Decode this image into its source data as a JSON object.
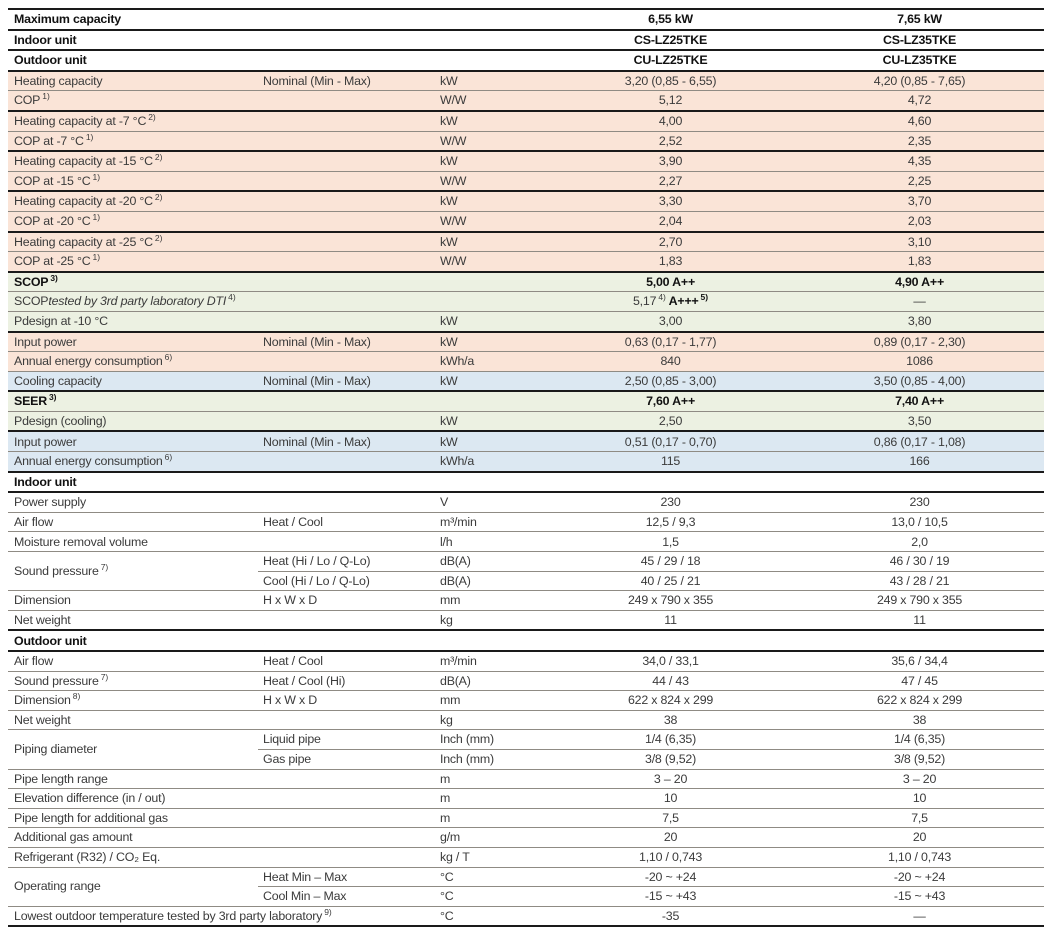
{
  "colors": {
    "salmon": "#fae4d7",
    "green": "#ecf1e2",
    "blue": "#dce8f2",
    "white": "#ffffff",
    "thick_border": "#1a1a1a",
    "thin_border": "#8f8b84"
  },
  "table": {
    "rows": [
      {
        "type": "header",
        "label": "Maximum capacity",
        "top": "tk",
        "values": [
          "6,55 kW",
          "7,65 kW"
        ]
      },
      {
        "type": "header",
        "label": "Indoor unit",
        "top": "tk",
        "values": [
          "CS-LZ25TKE",
          "CS-LZ35TKE"
        ]
      },
      {
        "type": "header",
        "label": "Outdoor unit",
        "top": "tk",
        "values": [
          "CU-LZ25TKE",
          "CU-LZ35TKE"
        ]
      },
      {
        "label": "Heating capacity",
        "sub": "Nominal (Min - Max)",
        "unit": "kW",
        "values": [
          "3,20 (0,85 - 6,55)",
          "4,20 (0,85 - 7,65)"
        ],
        "bg": "salmon",
        "top": "tk"
      },
      {
        "label": "COP",
        "sup": "1)",
        "unit": "W/W",
        "values": [
          "5,12",
          "4,72"
        ],
        "bg": "salmon",
        "top": "tn"
      },
      {
        "label": "Heating capacity at -7 °C",
        "sup": "2)",
        "unit": "kW",
        "values": [
          "4,00",
          "4,60"
        ],
        "bg": "salmon",
        "top": "tk"
      },
      {
        "label": "COP at -7 °C",
        "sup": "1)",
        "unit": "W/W",
        "values": [
          "2,52",
          "2,35"
        ],
        "bg": "salmon",
        "top": "tn"
      },
      {
        "label": "Heating capacity at -15 °C",
        "sup": "2)",
        "unit": "kW",
        "values": [
          "3,90",
          "4,35"
        ],
        "bg": "salmon",
        "top": "tk"
      },
      {
        "label": "COP at -15 °C",
        "sup": "1)",
        "unit": "W/W",
        "values": [
          "2,27",
          "2,25"
        ],
        "bg": "salmon",
        "top": "tn"
      },
      {
        "label": "Heating capacity at -20 °C",
        "sup": "2)",
        "unit": "kW",
        "values": [
          "3,30",
          "3,70"
        ],
        "bg": "salmon",
        "top": "tk"
      },
      {
        "label": "COP at -20 °C",
        "sup": "1)",
        "unit": "W/W",
        "values": [
          "2,04",
          "2,03"
        ],
        "bg": "salmon",
        "top": "tn"
      },
      {
        "label": "Heating capacity at -25 °C",
        "sup": "2)",
        "unit": "kW",
        "values": [
          "2,70",
          "3,10"
        ],
        "bg": "salmon",
        "top": "tk"
      },
      {
        "label": "COP at -25 °C",
        "sup": "1)",
        "unit": "W/W",
        "values": [
          "1,83",
          "1,83"
        ],
        "bg": "salmon",
        "top": "tn"
      },
      {
        "label": "SCOP",
        "sup": "3)",
        "bold": true,
        "vbold": true,
        "values": [
          "5,00 A++",
          "4,90 A++"
        ],
        "bg": "green",
        "top": "tk"
      },
      {
        "label": "SCOP",
        "italic": "tested by 3rd party laboratory DTI",
        "sup": "4)",
        "values": [
          [
            {
              "t": "5,17"
            },
            {
              "t": "4)",
              "sup": true
            },
            {
              "t": " A+++",
              "b": true
            },
            {
              "t": "5)",
              "sup": true,
              "b": true
            }
          ],
          "—"
        ],
        "bg": "green",
        "top": "tn"
      },
      {
        "label": "Pdesign at -10 °C",
        "unit": "kW",
        "values": [
          "3,00",
          "3,80"
        ],
        "bg": "green",
        "top": "tn"
      },
      {
        "label": "Input power",
        "sub": "Nominal (Min - Max)",
        "unit": "kW",
        "values": [
          "0,63 (0,17 - 1,77)",
          "0,89 (0,17 - 2,30)"
        ],
        "bg": "salmon",
        "top": "tk"
      },
      {
        "label": "Annual energy consumption",
        "sup": "6)",
        "unit": "kWh/a",
        "values": [
          "840",
          "1086"
        ],
        "bg": "salmon",
        "top": "tn"
      },
      {
        "label": "Cooling capacity",
        "sub": "Nominal (Min - Max)",
        "unit": "kW",
        "values": [
          "2,50 (0,85 - 3,00)",
          "3,50 (0,85 - 4,00)"
        ],
        "bg": "blue",
        "top": "tn"
      },
      {
        "label": "SEER",
        "sup": "3)",
        "bold": true,
        "vbold": true,
        "values": [
          "7,60 A++",
          "7,40 A++"
        ],
        "bg": "green",
        "top": "tk"
      },
      {
        "label": "Pdesign (cooling)",
        "unit": "kW",
        "values": [
          "2,50",
          "3,50"
        ],
        "bg": "green",
        "top": "tn"
      },
      {
        "label": "Input power",
        "sub": "Nominal (Min - Max)",
        "unit": "kW",
        "values": [
          "0,51 (0,17 - 0,70)",
          "0,86 (0,17 - 1,08)"
        ],
        "bg": "blue",
        "top": "tk"
      },
      {
        "label": "Annual energy consumption",
        "sup": "6)",
        "unit": "kWh/a",
        "values": [
          "115",
          "166"
        ],
        "bg": "blue",
        "top": "tn"
      },
      {
        "type": "section",
        "label": "Indoor unit",
        "top": "tk"
      },
      {
        "label": "Power supply",
        "unit": "V",
        "values": [
          "230",
          "230"
        ],
        "top": "tk"
      },
      {
        "label": "Air flow",
        "sub": "Heat / Cool",
        "unit": "m³/min",
        "values": [
          "12,5 / 9,3",
          "13,0 / 10,5"
        ],
        "top": "tn"
      },
      {
        "label": "Moisture removal volume",
        "unit": "l/h",
        "values": [
          "1,5",
          "2,0"
        ],
        "top": "tn"
      },
      {
        "type": "group",
        "label": "Sound pressure",
        "sup": "7)",
        "top": "tn",
        "subrows": [
          {
            "sub": "Heat (Hi / Lo / Q-Lo)",
            "unit": "dB(A)",
            "values": [
              "45 / 29 / 18",
              "46 / 30 / 19"
            ]
          },
          {
            "sub": "Cool (Hi / Lo / Q-Lo)",
            "unit": "dB(A)",
            "values": [
              "40 / 25 / 21",
              "43 / 28 / 21"
            ]
          }
        ]
      },
      {
        "label": "Dimension",
        "sub": "H x W x D",
        "unit": "mm",
        "values": [
          "249 x 790 x 355",
          "249 x 790 x 355"
        ],
        "top": "tn"
      },
      {
        "label": "Net weight",
        "unit": "kg",
        "values": [
          "11",
          "11"
        ],
        "top": "tn"
      },
      {
        "type": "section",
        "label": "Outdoor unit",
        "top": "tk"
      },
      {
        "label": "Air flow",
        "sub": "Heat / Cool",
        "unit": "m³/min",
        "values": [
          "34,0 / 33,1",
          "35,6 / 34,4"
        ],
        "top": "tk"
      },
      {
        "label": "Sound pressure",
        "sup": "7)",
        "sub": "Heat / Cool (Hi)",
        "unit": "dB(A)",
        "values": [
          "44 / 43",
          "47 / 45"
        ],
        "top": "tn"
      },
      {
        "label": "Dimension",
        "sup": "8)",
        "sub": "H x W x D",
        "unit": "mm",
        "values": [
          "622 x 824 x 299",
          "622 x 824 x 299"
        ],
        "top": "tn"
      },
      {
        "label": "Net weight",
        "unit": "kg",
        "values": [
          "38",
          "38"
        ],
        "top": "tn"
      },
      {
        "type": "group",
        "label": "Piping diameter",
        "top": "tn",
        "subrows": [
          {
            "sub": "Liquid pipe",
            "unit": "Inch (mm)",
            "values": [
              "1/4 (6,35)",
              "1/4 (6,35)"
            ]
          },
          {
            "sub": "Gas pipe",
            "unit": "Inch (mm)",
            "values": [
              "3/8 (9,52)",
              "3/8 (9,52)"
            ]
          }
        ]
      },
      {
        "label": "Pipe length range",
        "unit": "m",
        "values": [
          "3 – 20",
          "3 – 20"
        ],
        "top": "tn"
      },
      {
        "label": "Elevation difference (in / out)",
        "unit": "m",
        "values": [
          "10",
          "10"
        ],
        "top": "tn"
      },
      {
        "label": "Pipe length for additional gas",
        "unit": "m",
        "values": [
          "7,5",
          "7,5"
        ],
        "top": "tn"
      },
      {
        "label": "Additional gas amount",
        "unit": "g/m",
        "values": [
          "20",
          "20"
        ],
        "top": "tn"
      },
      {
        "label": "Refrigerant (R32) / CO₂ Eq.",
        "unit": "kg / T",
        "values": [
          "1,10 / 0,743",
          "1,10 / 0,743"
        ],
        "top": "tn"
      },
      {
        "type": "group",
        "label": "Operating range",
        "top": "tn",
        "subrows": [
          {
            "sub": "Heat Min – Max",
            "unit": "°C",
            "values": [
              "-20 ~ +24",
              "-20 ~ +24"
            ]
          },
          {
            "sub": "Cool Min – Max",
            "unit": "°C",
            "values": [
              "-15 ~ +43",
              "-15 ~ +43"
            ]
          }
        ]
      },
      {
        "label": "Lowest outdoor temperature tested by 3rd party laboratory",
        "sup": "9)",
        "unit": "°C",
        "values": [
          "-35",
          "—"
        ],
        "top": "tn"
      }
    ]
  }
}
